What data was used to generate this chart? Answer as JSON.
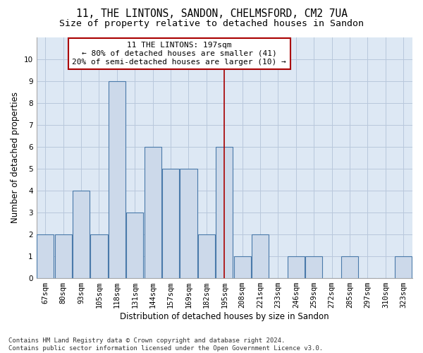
{
  "title1": "11, THE LINTONS, SANDON, CHELMSFORD, CM2 7UA",
  "title2": "Size of property relative to detached houses in Sandon",
  "xlabel": "Distribution of detached houses by size in Sandon",
  "ylabel": "Number of detached properties",
  "categories": [
    "67sqm",
    "80sqm",
    "93sqm",
    "105sqm",
    "118sqm",
    "131sqm",
    "144sqm",
    "157sqm",
    "169sqm",
    "182sqm",
    "195sqm",
    "208sqm",
    "221sqm",
    "233sqm",
    "246sqm",
    "259sqm",
    "272sqm",
    "285sqm",
    "297sqm",
    "310sqm",
    "323sqm"
  ],
  "values": [
    2,
    2,
    4,
    2,
    9,
    3,
    6,
    5,
    5,
    2,
    6,
    1,
    2,
    0,
    1,
    1,
    0,
    1,
    0,
    0,
    1
  ],
  "bar_color": "#ccd9ea",
  "bar_edge_color": "#4a7aaa",
  "bar_linewidth": 0.8,
  "grid_color": "#b8c8dc",
  "bg_color": "#dde8f4",
  "vline_x_index": 10,
  "vline_color": "#aa0000",
  "annotation_text": "11 THE LINTONS: 197sqm\n← 80% of detached houses are smaller (41)\n20% of semi-detached houses are larger (10) →",
  "annotation_box_edge": "#aa0000",
  "ylim": [
    0,
    11
  ],
  "yticks": [
    0,
    1,
    2,
    3,
    4,
    5,
    6,
    7,
    8,
    9,
    10,
    11
  ],
  "footer": "Contains HM Land Registry data © Crown copyright and database right 2024.\nContains public sector information licensed under the Open Government Licence v3.0.",
  "title1_fontsize": 10.5,
  "title2_fontsize": 9.5,
  "xlabel_fontsize": 8.5,
  "ylabel_fontsize": 8.5,
  "tick_fontsize": 7.5,
  "annotation_fontsize": 8,
  "footer_fontsize": 6.5
}
